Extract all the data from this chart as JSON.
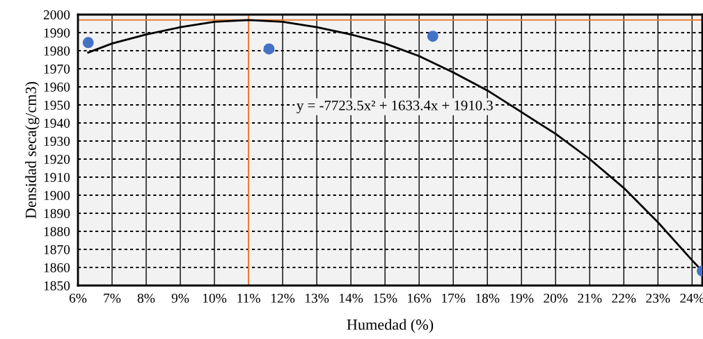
{
  "chart_data": {
    "type": "scatter",
    "xlabel": "Humedad (%)",
    "ylabel": "Densidad seca(g/cm3)",
    "xlim": [
      6,
      24.3
    ],
    "ylim": [
      1850,
      2000
    ],
    "xticks": [
      {
        "value": 6,
        "label": "6%"
      },
      {
        "value": 7,
        "label": "7%"
      },
      {
        "value": 8,
        "label": "8%"
      },
      {
        "value": 9,
        "label": "9%"
      },
      {
        "value": 10,
        "label": "10%"
      },
      {
        "value": 11,
        "label": "11%"
      },
      {
        "value": 12,
        "label": "12%"
      },
      {
        "value": 13,
        "label": "13%"
      },
      {
        "value": 14,
        "label": "14%"
      },
      {
        "value": 15,
        "label": "15%"
      },
      {
        "value": 16,
        "label": "16%"
      },
      {
        "value": 17,
        "label": "17%"
      },
      {
        "value": 18,
        "label": "18%"
      },
      {
        "value": 19,
        "label": "19%"
      },
      {
        "value": 20,
        "label": "20%"
      },
      {
        "value": 21,
        "label": "21%"
      },
      {
        "value": 22,
        "label": "22%"
      },
      {
        "value": 23,
        "label": "23%"
      },
      {
        "value": 24,
        "label": "24%"
      }
    ],
    "yticks": [
      1850,
      1860,
      1870,
      1880,
      1890,
      1900,
      1910,
      1920,
      1930,
      1940,
      1950,
      1960,
      1970,
      1980,
      1990,
      2000
    ],
    "grid": true,
    "legend": false,
    "series": [
      {
        "marker": "circle",
        "color": "#4472c4",
        "x": [
          6.3,
          11.6,
          16.4,
          24.3
        ],
        "values": [
          1984.5,
          1981,
          1988,
          1858
        ]
      },
      {
        "type": "line",
        "color": "#000000",
        "x": [
          6.3,
          7,
          8,
          9,
          10,
          11,
          12,
          13,
          14,
          15,
          16,
          17,
          18,
          19,
          20,
          21,
          22,
          23,
          24,
          24.3
        ],
        "values": [
          1979,
          1984,
          1989,
          1993,
          1996,
          1997,
          1996,
          1993,
          1989,
          1984,
          1977,
          1968,
          1958,
          1946,
          1934,
          1920,
          1904,
          1885,
          1864,
          1858
        ]
      }
    ],
    "ref_lines": [
      {
        "axis": "y",
        "value": 1997,
        "color": "#ed7d31"
      },
      {
        "axis": "x",
        "value": 11,
        "color": "#ed7d31"
      }
    ],
    "annotations": [
      "y = -7723.5x² + 1633.4x + 1910.3"
    ]
  }
}
